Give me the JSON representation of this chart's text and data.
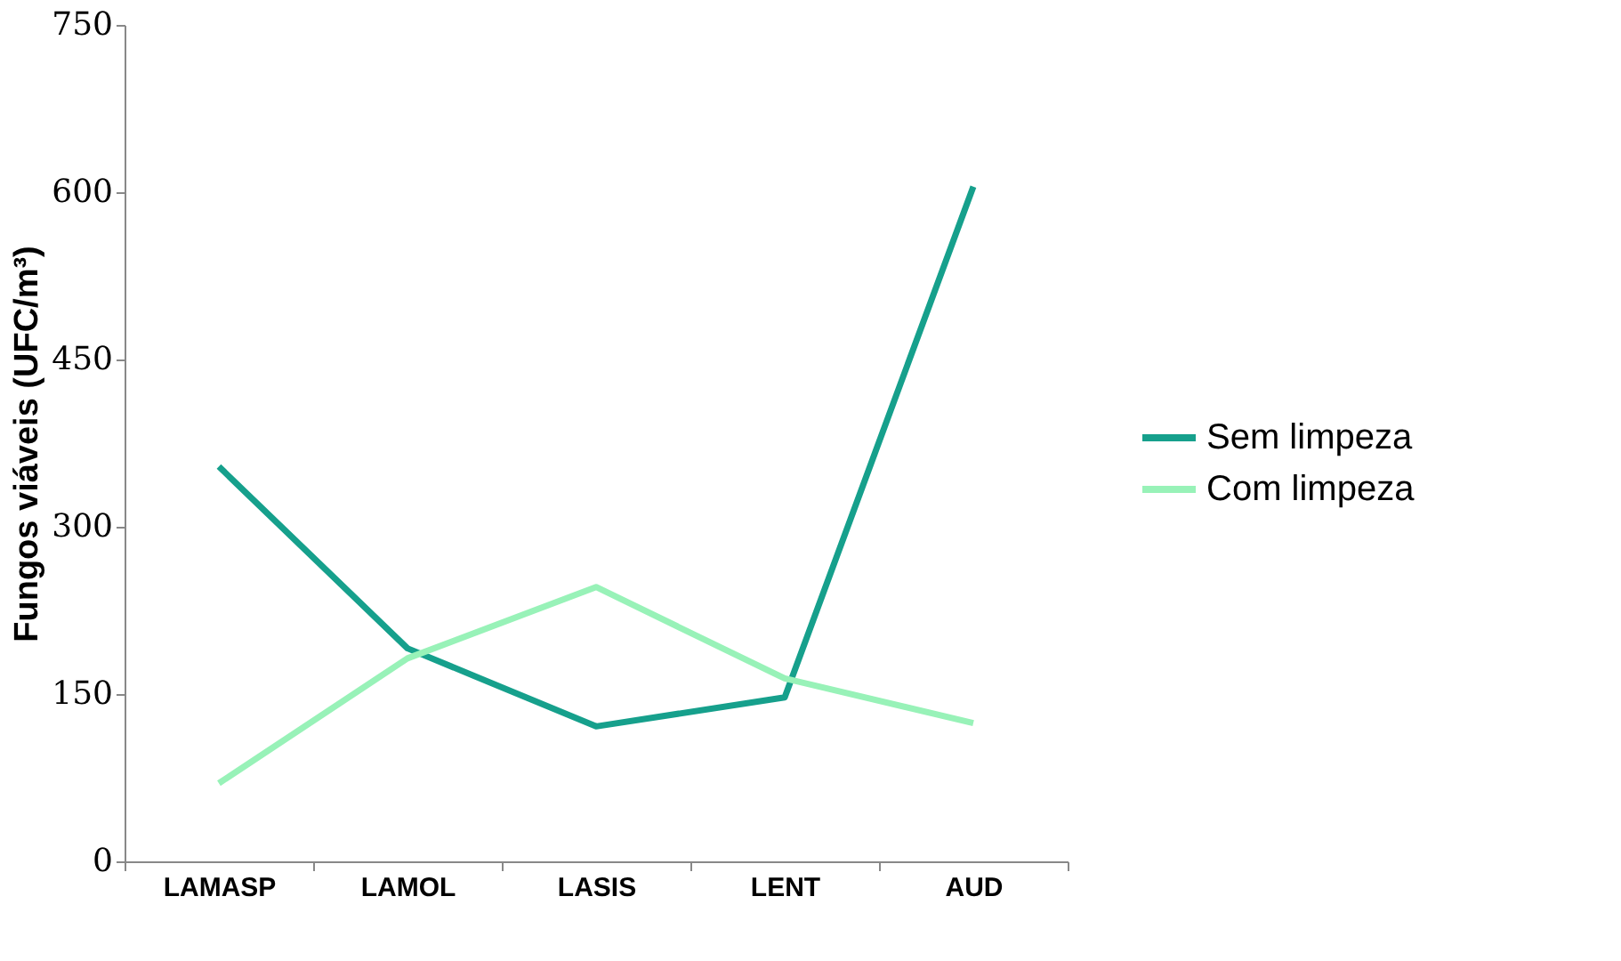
{
  "chart_data": {
    "type": "line",
    "ylabel": "Fungos viáveis (UFC/m³)",
    "categories": [
      "LAMASP",
      "LAMOL",
      "LASIS",
      "LENT",
      "AUD"
    ],
    "series": [
      {
        "name": "Sem limpeza",
        "color": "#16a08c",
        "values": [
          354,
          191,
          121,
          147,
          605
        ]
      },
      {
        "name": "Com limpeza",
        "color": "#98f2b8",
        "values": [
          70,
          182,
          246,
          164,
          124
        ]
      }
    ],
    "ylim": [
      0,
      750
    ],
    "yticks": [
      0,
      150,
      300,
      450,
      600,
      750
    ],
    "grid": false,
    "legend": "right",
    "marker": "none",
    "line_style": "solid"
  }
}
